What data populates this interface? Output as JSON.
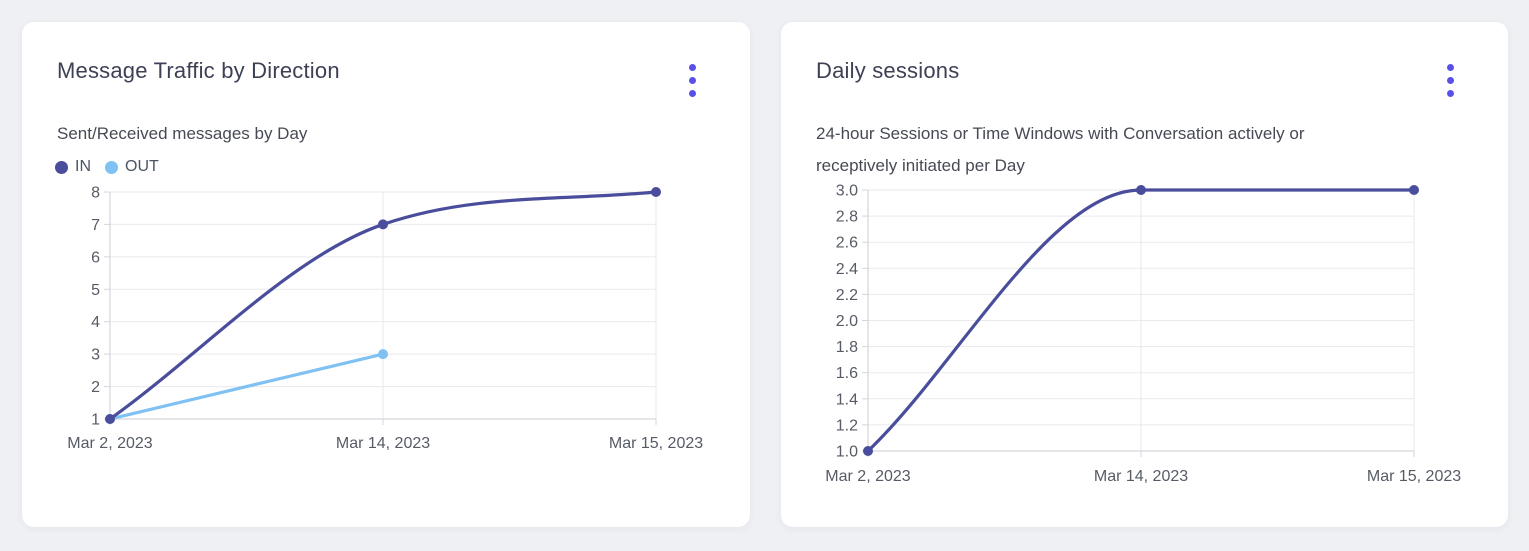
{
  "theme": {
    "page_bg": "#eff0f4",
    "card_bg": "#ffffff",
    "accent_menu": "#5a50e8",
    "title_color": "#3e4155",
    "subtitle_color": "#474a54",
    "tick_color": "#565b65",
    "grid_color": "#e9eaee",
    "axis_color": "#d4d6dc",
    "series_in_color": "#4a4d9b",
    "series_out_color": "#7ec1f2"
  },
  "cards": [
    {
      "title": "Message Traffic by Direction",
      "subtitle": "Sent/Received messages by Day",
      "menu_icon": "kebab-menu"
    },
    {
      "title": "Daily sessions",
      "subtitle": "24-hour Sessions or Time Windows with Conversation actively or\nreceptively initiated per Day",
      "menu_icon": "kebab-menu"
    }
  ],
  "chart_data": [
    {
      "type": "line",
      "title": "Message Traffic by Direction",
      "subtitle": "Sent/Received messages by Day",
      "x": [
        "Mar 2, 2023",
        "Mar 14, 2023",
        "Mar 15, 2023"
      ],
      "series": [
        {
          "name": "IN",
          "color": "#4a4d9b",
          "values": [
            1,
            7,
            8
          ]
        },
        {
          "name": "OUT",
          "color": "#7ec1f2",
          "values": [
            1,
            3,
            null
          ]
        }
      ],
      "ylim": [
        1,
        8
      ],
      "yticks": [
        "1",
        "2",
        "3",
        "4",
        "5",
        "6",
        "7",
        "8"
      ],
      "grid": true,
      "legend_position": "top-left"
    },
    {
      "type": "line",
      "title": "Daily sessions",
      "subtitle": "24-hour Sessions or Time Windows with Conversation actively or receptively initiated per Day",
      "x": [
        "Mar 2, 2023",
        "Mar 14, 2023",
        "Mar 15, 2023"
      ],
      "series": [
        {
          "name": "Daily sessions",
          "color": "#4a4d9b",
          "values": [
            1.0,
            3.0,
            3.0
          ]
        }
      ],
      "ylim": [
        1.0,
        3.0
      ],
      "yticks": [
        "1.0",
        "1.2",
        "1.4",
        "1.6",
        "1.8",
        "2.0",
        "2.2",
        "2.4",
        "2.6",
        "2.8",
        "3.0"
      ],
      "grid": true,
      "legend_position": "none"
    }
  ]
}
